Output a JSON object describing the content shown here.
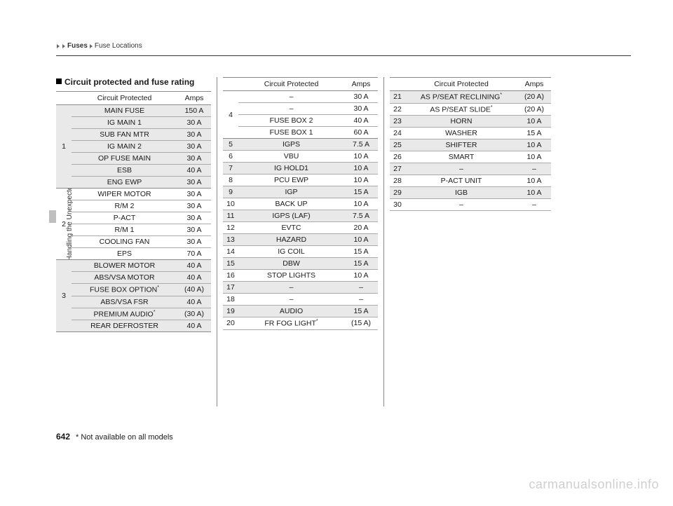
{
  "breadcrumb": {
    "level1": "Fuses",
    "level2": "Fuse Locations"
  },
  "section_title": "Circuit protected and fuse rating",
  "side_text": "Handling the Unexpected",
  "page_number": "642",
  "footnote": "* Not available on all models",
  "watermark": "carmanualsonline.info",
  "headers": {
    "circuit": "Circuit Protected",
    "amps": "Amps"
  },
  "col1_groups": [
    {
      "num": "1",
      "shade": true,
      "rows": [
        {
          "c": "MAIN FUSE",
          "a": "150 A"
        },
        {
          "c": "IG MAIN 1",
          "a": "30 A"
        },
        {
          "c": "SUB FAN MTR",
          "a": "30 A"
        },
        {
          "c": "IG MAIN 2",
          "a": "30 A"
        },
        {
          "c": "OP FUSE MAIN",
          "a": "30 A"
        },
        {
          "c": "ESB",
          "a": "40 A"
        },
        {
          "c": "ENG EWP",
          "a": "30 A"
        }
      ]
    },
    {
      "num": "2",
      "shade": false,
      "rows": [
        {
          "c": "WIPER MOTOR",
          "a": "30 A"
        },
        {
          "c": "R/M 2",
          "a": "30 A"
        },
        {
          "c": "P-ACT",
          "a": "30 A"
        },
        {
          "c": "R/M 1",
          "a": "30 A"
        },
        {
          "c": "COOLING FAN",
          "a": "30 A"
        },
        {
          "c": "EPS",
          "a": "70 A"
        }
      ]
    },
    {
      "num": "3",
      "shade": true,
      "rows": [
        {
          "c": "BLOWER MOTOR",
          "a": "40 A"
        },
        {
          "c": "ABS/VSA MOTOR",
          "a": "40 A"
        },
        {
          "c": "FUSE BOX OPTION*",
          "a": "(40 A)"
        },
        {
          "c": "ABS/VSA FSR",
          "a": "40 A"
        },
        {
          "c": "PREMIUM AUDIO*",
          "a": "(30 A)"
        },
        {
          "c": "REAR DEFROSTER",
          "a": "40 A"
        }
      ]
    }
  ],
  "col2_head_group": {
    "num": "4",
    "shade": false,
    "rows": [
      {
        "c": "–",
        "a": "30 A"
      },
      {
        "c": "–",
        "a": "30 A"
      },
      {
        "c": "FUSE BOX 2",
        "a": "40 A"
      },
      {
        "c": "FUSE BOX 1",
        "a": "60 A"
      }
    ]
  },
  "col2_rows": [
    {
      "n": "5",
      "c": "IGPS",
      "a": "7.5 A",
      "shade": true
    },
    {
      "n": "6",
      "c": "VBU",
      "a": "10 A",
      "shade": false
    },
    {
      "n": "7",
      "c": "IG HOLD1",
      "a": "10 A",
      "shade": true
    },
    {
      "n": "8",
      "c": "PCU EWP",
      "a": "10 A",
      "shade": false
    },
    {
      "n": "9",
      "c": "IGP",
      "a": "15 A",
      "shade": true
    },
    {
      "n": "10",
      "c": "BACK UP",
      "a": "10 A",
      "shade": false
    },
    {
      "n": "11",
      "c": "IGPS (LAF)",
      "a": "7.5 A",
      "shade": true
    },
    {
      "n": "12",
      "c": "EVTC",
      "a": "20 A",
      "shade": false
    },
    {
      "n": "13",
      "c": "HAZARD",
      "a": "10 A",
      "shade": true
    },
    {
      "n": "14",
      "c": "IG COIL",
      "a": "15 A",
      "shade": false
    },
    {
      "n": "15",
      "c": "DBW",
      "a": "15 A",
      "shade": true
    },
    {
      "n": "16",
      "c": "STOP LIGHTS",
      "a": "10 A",
      "shade": false
    },
    {
      "n": "17",
      "c": "–",
      "a": "–",
      "shade": true
    },
    {
      "n": "18",
      "c": "–",
      "a": "–",
      "shade": false
    },
    {
      "n": "19",
      "c": "AUDIO",
      "a": "15 A",
      "shade": true
    },
    {
      "n": "20",
      "c": "FR FOG LIGHT*",
      "a": "(15 A)",
      "shade": false
    }
  ],
  "col3_rows": [
    {
      "n": "21",
      "c": "AS P/SEAT RECLINING*",
      "a": "(20 A)",
      "shade": true
    },
    {
      "n": "22",
      "c": "AS P/SEAT SLIDE*",
      "a": "(20 A)",
      "shade": false
    },
    {
      "n": "23",
      "c": "HORN",
      "a": "10 A",
      "shade": true
    },
    {
      "n": "24",
      "c": "WASHER",
      "a": "15 A",
      "shade": false
    },
    {
      "n": "25",
      "c": "SHIFTER",
      "a": "10 A",
      "shade": true
    },
    {
      "n": "26",
      "c": "SMART",
      "a": "10 A",
      "shade": false
    },
    {
      "n": "27",
      "c": "–",
      "a": "–",
      "shade": true
    },
    {
      "n": "28",
      "c": "P-ACT UNIT",
      "a": "10 A",
      "shade": false
    },
    {
      "n": "29",
      "c": "IGB",
      "a": "10 A",
      "shade": true
    },
    {
      "n": "30",
      "c": "–",
      "a": "–",
      "shade": false
    }
  ]
}
